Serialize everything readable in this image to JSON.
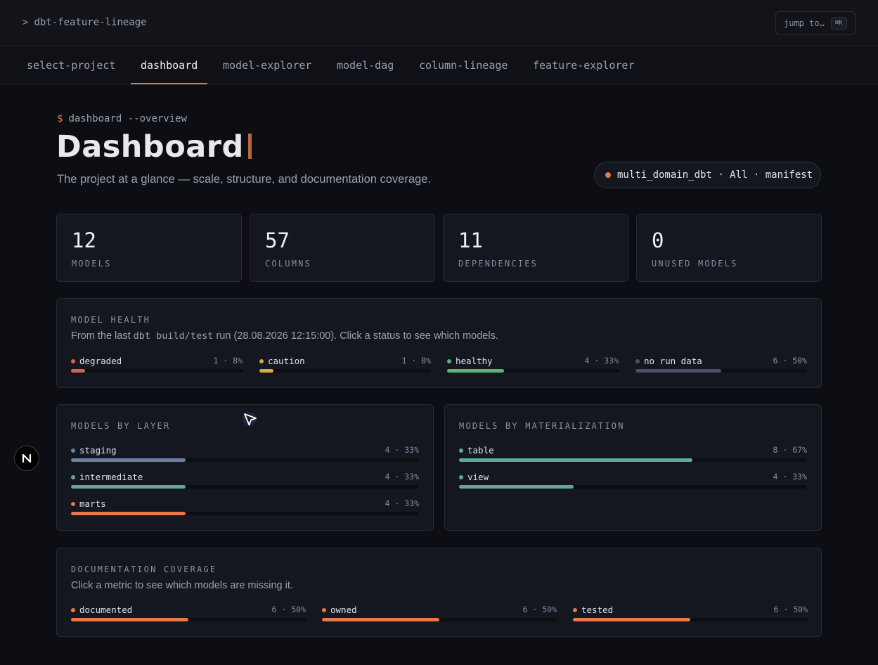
{
  "app": {
    "prompt_symbol": ">",
    "name": "dbt-feature-lineage",
    "jump_label": "jump to…",
    "jump_shortcut": "⌘K"
  },
  "tabs": [
    {
      "label": "select-project",
      "active": false
    },
    {
      "label": "dashboard",
      "active": true
    },
    {
      "label": "model-explorer",
      "active": false
    },
    {
      "label": "model-dag",
      "active": false
    },
    {
      "label": "column-lineage",
      "active": false
    },
    {
      "label": "feature-explorer",
      "active": false
    }
  ],
  "page": {
    "command_symbol": "$",
    "command": "dashboard --overview",
    "title": "Dashboard",
    "subtitle": "The project at a glance — scale, structure, and documentation coverage.",
    "context_pill": "multi_domain_dbt · All · manifest"
  },
  "stats": [
    {
      "value": "12",
      "label": "MODELS"
    },
    {
      "value": "57",
      "label": "COLUMNS"
    },
    {
      "value": "11",
      "label": "DEPENDENCIES"
    },
    {
      "value": "0",
      "label": "UNUSED MODELS"
    }
  ],
  "model_health": {
    "title": "MODEL HEALTH",
    "desc_prefix": "From the last ",
    "desc_code": "dbt build/test",
    "desc_suffix": " run (28.08.2026 12:15:00). Click a status to see which models.",
    "items": [
      {
        "name": "degraded",
        "value": "1 · 8%",
        "fraction": 0.08,
        "color": "#d9624e"
      },
      {
        "name": "caution",
        "value": "1 · 8%",
        "fraction": 0.08,
        "color": "#d8a64c"
      },
      {
        "name": "healthy",
        "value": "4 · 33%",
        "fraction": 0.33,
        "color": "#5fb37a"
      },
      {
        "name": "no run data",
        "value": "6 · 50%",
        "fraction": 0.5,
        "color": "#4a5263"
      }
    ]
  },
  "models_by_layer": {
    "title": "MODELS BY LAYER",
    "items": [
      {
        "name": "staging",
        "value": "4 · 33%",
        "fraction": 0.33,
        "color": "#7280a0"
      },
      {
        "name": "intermediate",
        "value": "4 · 33%",
        "fraction": 0.33,
        "color": "#5fa89b"
      },
      {
        "name": "marts",
        "value": "4 · 33%",
        "fraction": 0.33,
        "color": "#e8784c"
      }
    ]
  },
  "models_by_materialization": {
    "title": "MODELS BY MATERIALIZATION",
    "items": [
      {
        "name": "table",
        "value": "8 · 67%",
        "fraction": 0.67,
        "color": "#5fa89b"
      },
      {
        "name": "view",
        "value": "4 · 33%",
        "fraction": 0.33,
        "color": "#5fa89b"
      }
    ]
  },
  "documentation_coverage": {
    "title": "DOCUMENTATION COVERAGE",
    "desc": "Click a metric to see which models are missing it.",
    "items": [
      {
        "name": "documented",
        "value": "6 · 50%",
        "fraction": 0.5,
        "color": "#e8784c"
      },
      {
        "name": "owned",
        "value": "6 · 50%",
        "fraction": 0.5,
        "color": "#e8784c"
      },
      {
        "name": "tested",
        "value": "6 · 50%",
        "fraction": 0.5,
        "color": "#e8784c"
      }
    ]
  },
  "badge": {
    "letter": "N"
  },
  "colors": {
    "accent": "#e8784c",
    "background": "#0c0e13",
    "card": "#141720"
  }
}
